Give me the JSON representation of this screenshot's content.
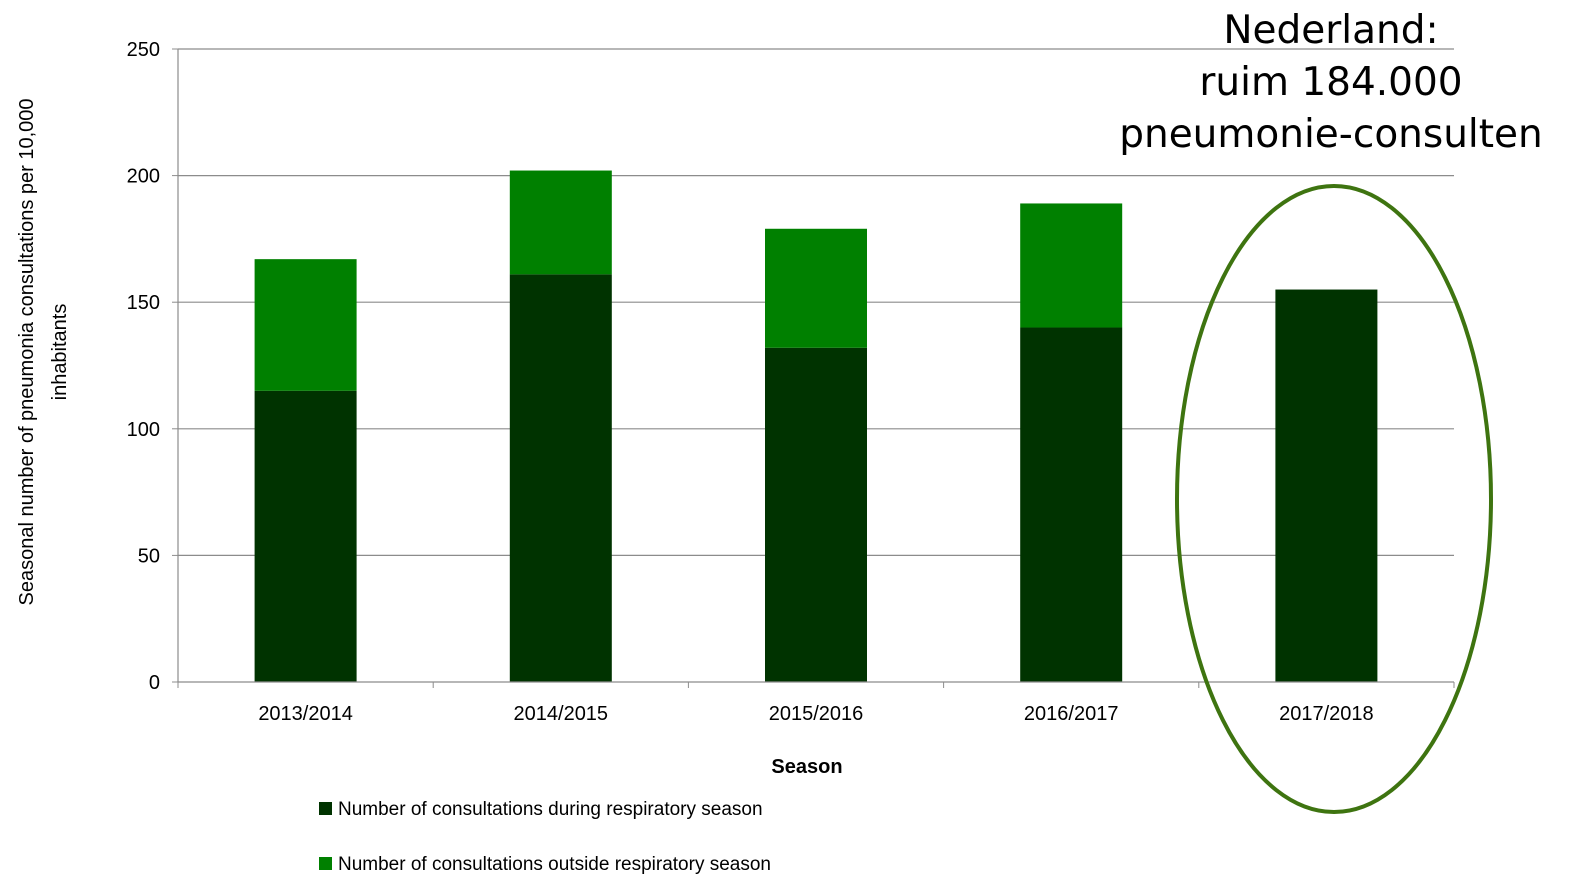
{
  "chart_data": {
    "type": "bar",
    "stacked": true,
    "categories": [
      "2013/2014",
      "2014/2015",
      "2015/2016",
      "2016/2017",
      "2017/2018"
    ],
    "series": [
      {
        "name": "Number of consultations during respiratory season",
        "color": "#003300",
        "values": [
          115,
          161,
          132,
          140,
          155
        ]
      },
      {
        "name": "Number of consultations outside respiratory season",
        "color": "#008000",
        "values": [
          52,
          41,
          47,
          49,
          0
        ]
      }
    ],
    "xlabel": "Season",
    "ylabel_lines": [
      "Seasonal number of pneumonia consultations per 10,000",
      "inhabitants"
    ],
    "ylim": [
      0,
      250
    ],
    "yticks": [
      0,
      50,
      100,
      150,
      200,
      250
    ],
    "grid": true,
    "legend_position": "bottom-left",
    "annotation": {
      "lines": [
        "Nederland:",
        "ruim 184.000",
        "pneumonie-consulten"
      ],
      "highlight_category": "2017/2018",
      "highlight_color": "#3e7410"
    }
  }
}
